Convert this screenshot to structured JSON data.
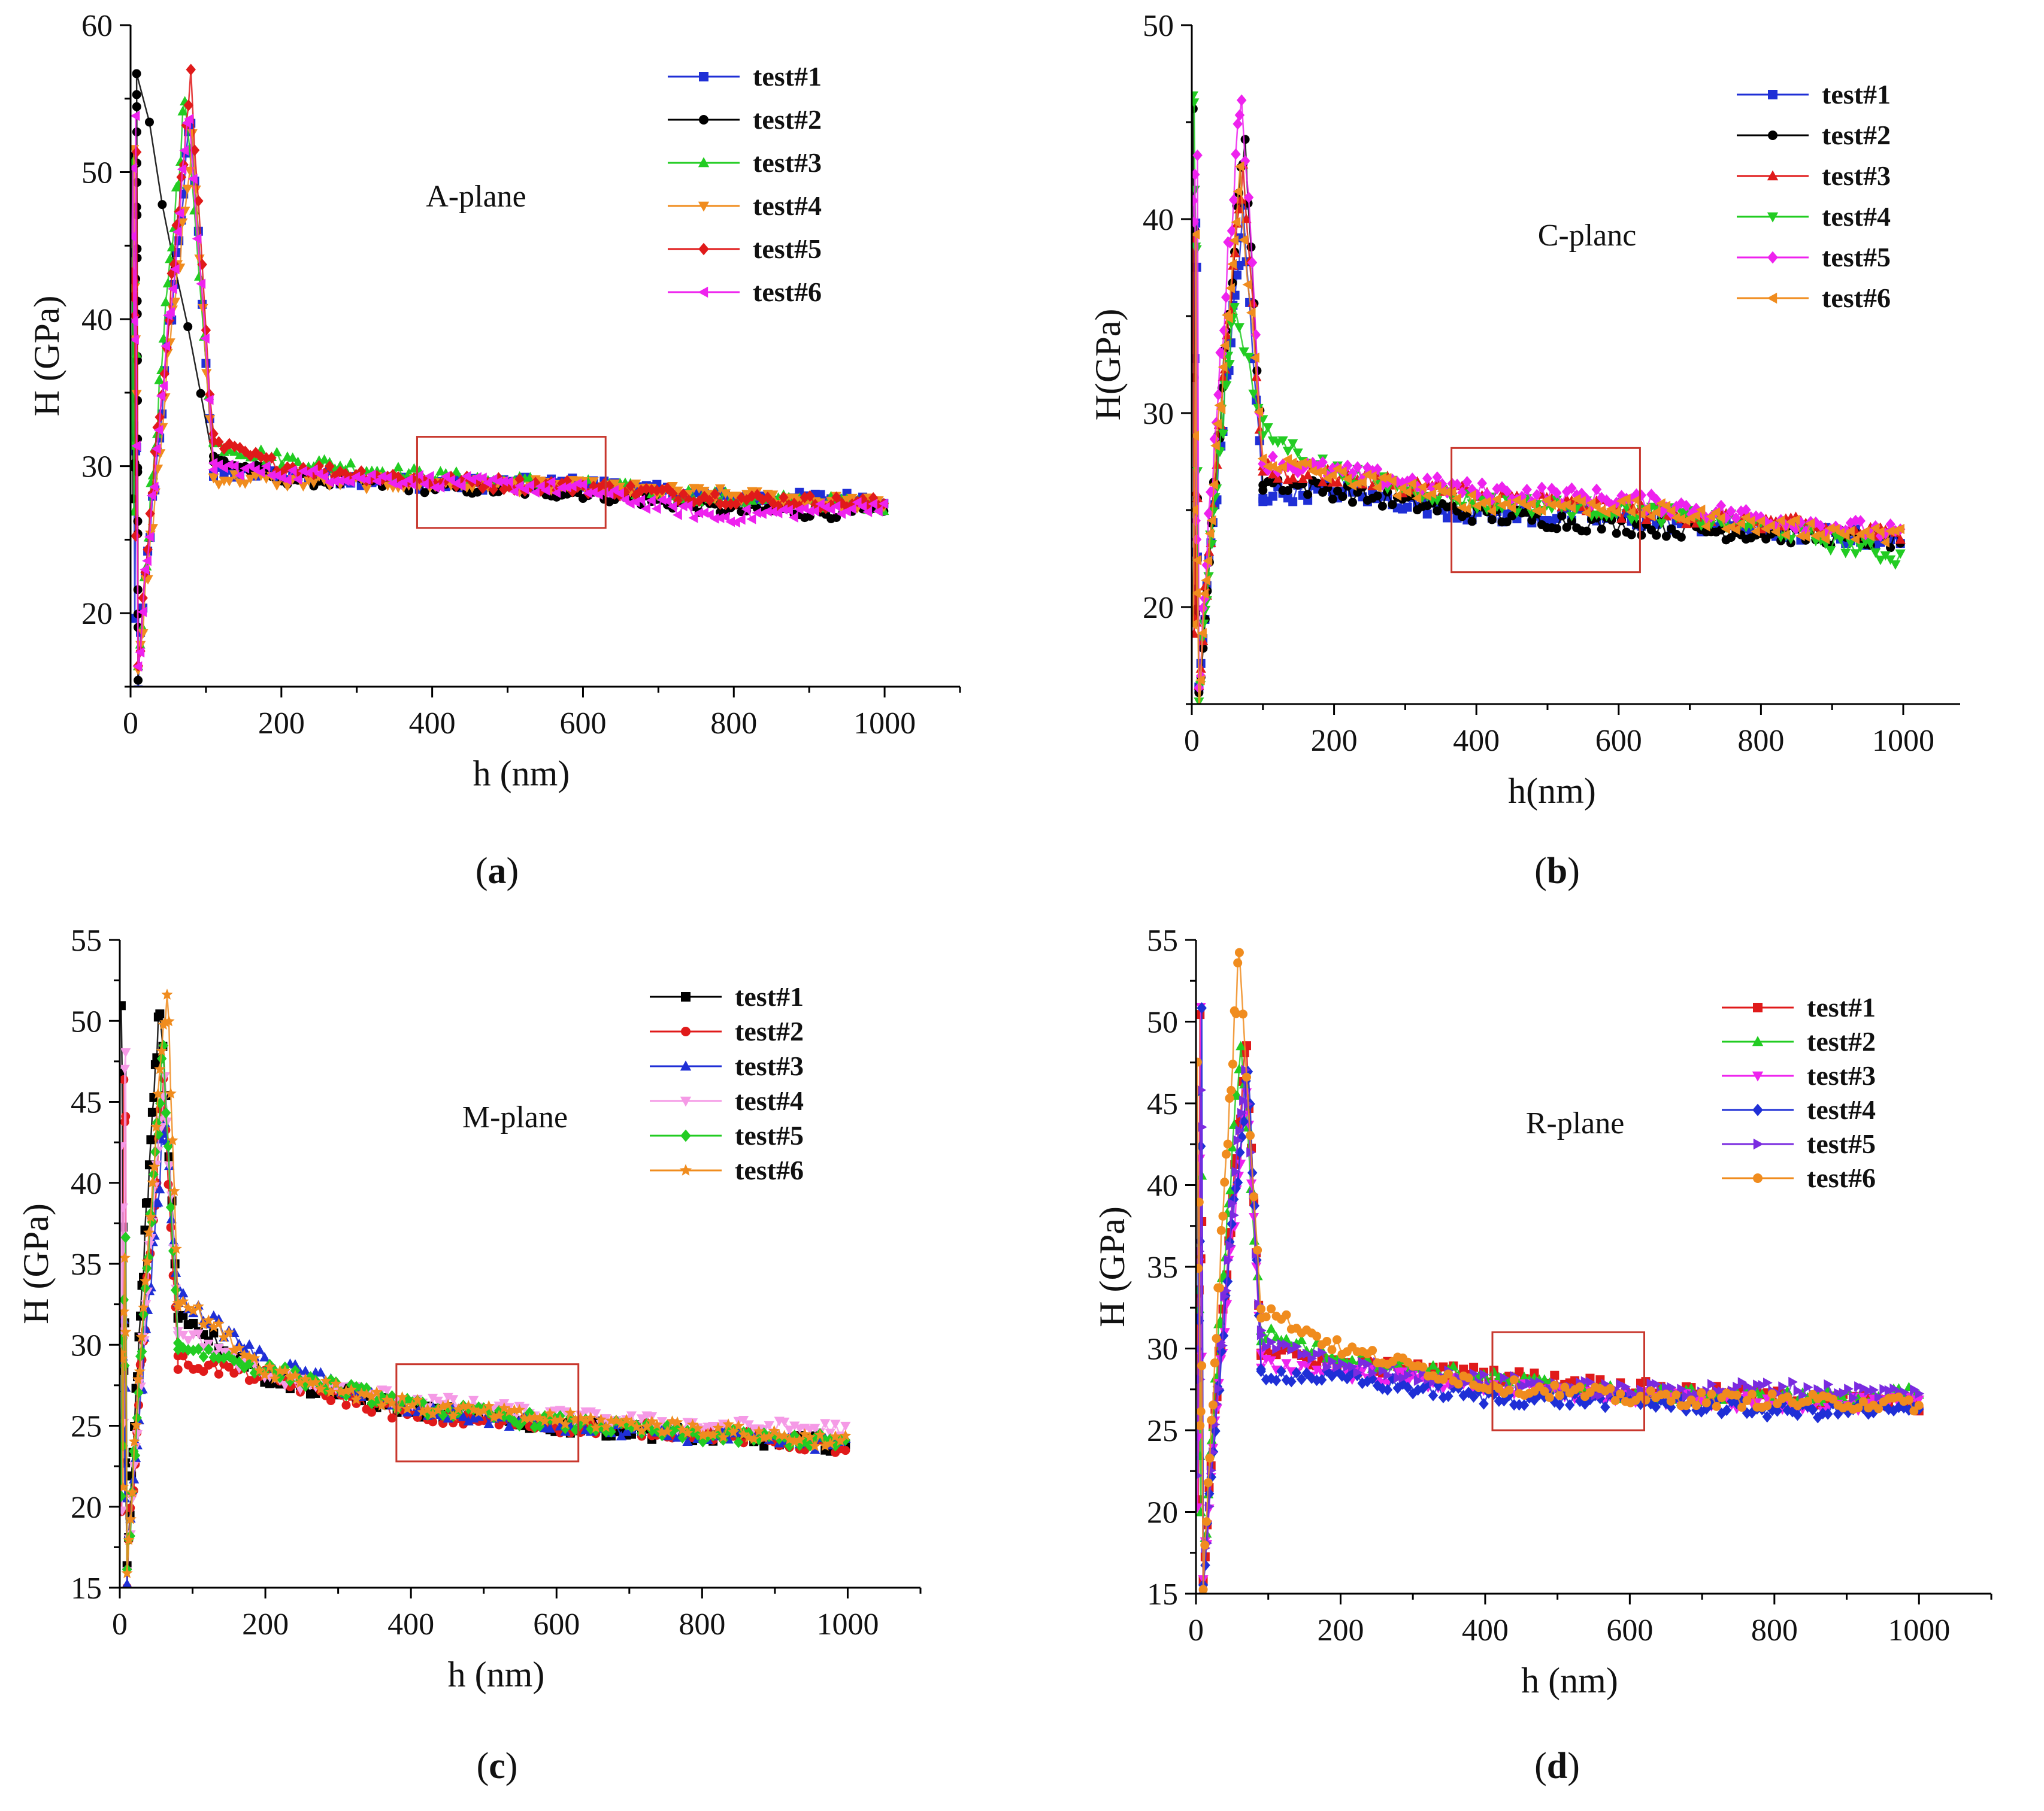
{
  "figure": {
    "panels": [
      {
        "caption_letter": "a",
        "plane_label": "A-plane",
        "box_color": "#c8372d"
      },
      {
        "caption_letter": "b",
        "plane_label": "C-planc",
        "box_color": "#c8372d"
      },
      {
        "caption_letter": "c",
        "plane_label": "M-plane",
        "box_color": "#c8372d"
      },
      {
        "caption_letter": "d",
        "plane_label": "R-plane",
        "box_color": "#c8372d"
      }
    ]
  },
  "chart_data": [
    {
      "type": "scatter",
      "title": "",
      "annotation": "A-plane",
      "xlabel": "h (nm)",
      "ylabel": "H (GPa)",
      "xlim": [
        0,
        1100
      ],
      "ylim": [
        15,
        60
      ],
      "xticks": [
        0,
        200,
        400,
        600,
        800,
        1000
      ],
      "yticks": [
        20,
        30,
        40,
        50,
        60
      ],
      "grid": false,
      "legend_position": "top-right",
      "highlight_box_x": [
        380,
        630
      ],
      "highlight_box_y": [
        25.8,
        32
      ],
      "series": [
        {
          "name": "test#1",
          "color": "#1f2fd6",
          "marker": "square",
          "peak_x": 80,
          "peak_y": 53.5,
          "plateau": [
            [
              110,
              29.5
            ],
            [
              200,
              29.5
            ],
            [
              400,
              28.8
            ],
            [
              600,
              28.8
            ],
            [
              800,
              27.8
            ],
            [
              1000,
              27.8
            ]
          ]
        },
        {
          "name": "test#2",
          "color": "#000000",
          "marker": "circle",
          "peak_x": 8,
          "peak_y": 57.5,
          "plateau": [
            [
              110,
              30.5
            ],
            [
              200,
              29.2
            ],
            [
              400,
              28.6
            ],
            [
              600,
              28.2
            ],
            [
              800,
              27.0
            ],
            [
              1000,
              26.8
            ]
          ]
        },
        {
          "name": "test#3",
          "color": "#22cc22",
          "marker": "triangle-up",
          "peak_x": 72,
          "peak_y": 55.0,
          "plateau": [
            [
              110,
              31.5
            ],
            [
              200,
              30.5
            ],
            [
              400,
              29.3
            ],
            [
              600,
              28.7
            ],
            [
              800,
              27.8
            ],
            [
              1000,
              27.4
            ]
          ]
        },
        {
          "name": "test#4",
          "color": "#f08c1e",
          "marker": "triangle-down",
          "peak_x": 82,
          "peak_y": 52.0,
          "plateau": [
            [
              110,
              29.2
            ],
            [
              200,
              29.0
            ],
            [
              400,
              28.8
            ],
            [
              600,
              28.6
            ],
            [
              800,
              28.0
            ],
            [
              1000,
              27.4
            ]
          ]
        },
        {
          "name": "test#5",
          "color": "#e01a1a",
          "marker": "diamond",
          "peak_x": 80,
          "peak_y": 56.0,
          "plateau": [
            [
              110,
              31.5
            ],
            [
              200,
              30.0
            ],
            [
              400,
              29.0
            ],
            [
              600,
              28.6
            ],
            [
              800,
              27.8
            ],
            [
              1000,
              27.4
            ]
          ]
        },
        {
          "name": "test#6",
          "color": "#ee22ee",
          "marker": "triangle-left",
          "peak_x": 78,
          "peak_y": 54.0,
          "plateau": [
            [
              110,
              30.0
            ],
            [
              200,
              29.5
            ],
            [
              400,
              29.0
            ],
            [
              600,
              28.4
            ],
            [
              780,
              26.5
            ],
            [
              1000,
              27.4
            ]
          ]
        }
      ]
    },
    {
      "type": "scatter",
      "title": "",
      "annotation": "C-planc",
      "xlabel": "h(nm)",
      "ylabel": "H(GPa)",
      "xlim": [
        0,
        1080
      ],
      "ylim": [
        15,
        50
      ],
      "xticks": [
        0,
        200,
        400,
        600,
        800,
        1000
      ],
      "yticks": [
        20,
        30,
        40,
        50
      ],
      "grid": false,
      "legend_position": "top-right",
      "highlight_box_x": [
        365,
        630
      ],
      "highlight_box_y": [
        21.8,
        28.2
      ],
      "series": [
        {
          "name": "test#1",
          "color": "#1f2fd6",
          "marker": "square",
          "peak_x": 72,
          "peak_y": 40.0,
          "plateau": [
            [
              100,
              25.8
            ],
            [
              200,
              26.0
            ],
            [
              400,
              24.8
            ],
            [
              600,
              24.6
            ],
            [
              800,
              24.0
            ],
            [
              1000,
              23.4
            ]
          ]
        },
        {
          "name": "test#2",
          "color": "#000000",
          "marker": "circle",
          "peak_x": 75,
          "peak_y": 44.5,
          "plateau": [
            [
              100,
              26.5
            ],
            [
              200,
              26.0
            ],
            [
              400,
              24.8
            ],
            [
              600,
              24.2
            ],
            [
              800,
              23.8
            ],
            [
              1000,
              23.4
            ]
          ]
        },
        {
          "name": "test#3",
          "color": "#e01a1a",
          "marker": "triangle-up",
          "peak_x": 72,
          "peak_y": 43.0,
          "plateau": [
            [
              100,
              27.0
            ],
            [
              200,
              26.8
            ],
            [
              400,
              25.8
            ],
            [
              600,
              25.0
            ],
            [
              800,
              24.4
            ],
            [
              1000,
              23.6
            ]
          ]
        },
        {
          "name": "test#4",
          "color": "#22cc22",
          "marker": "triangle-down",
          "peak_x": 60,
          "peak_y": 36.0,
          "plateau": [
            [
              100,
              29.0
            ],
            [
              200,
              27.0
            ],
            [
              400,
              25.4
            ],
            [
              600,
              25.0
            ],
            [
              800,
              24.2
            ],
            [
              1000,
              22.5
            ]
          ]
        },
        {
          "name": "test#5",
          "color": "#ee22ee",
          "marker": "diamond",
          "peak_x": 70,
          "peak_y": 47.0,
          "plateau": [
            [
              100,
              27.5
            ],
            [
              200,
              27.0
            ],
            [
              400,
              26.0
            ],
            [
              600,
              25.6
            ],
            [
              800,
              24.6
            ],
            [
              1000,
              23.8
            ]
          ]
        },
        {
          "name": "test#6",
          "color": "#f08c1e",
          "marker": "triangle-left",
          "peak_x": 68,
          "peak_y": 42.0,
          "plateau": [
            [
              100,
              27.6
            ],
            [
              200,
              26.8
            ],
            [
              400,
              25.4
            ],
            [
              600,
              25.2
            ],
            [
              800,
              24.2
            ],
            [
              1000,
              23.6
            ]
          ]
        }
      ]
    },
    {
      "type": "scatter",
      "title": "",
      "annotation": "M-plane",
      "xlabel": "h (nm)",
      "ylabel": "H (GPa)",
      "xlim": [
        0,
        1100
      ],
      "ylim": [
        15,
        55
      ],
      "xticks": [
        0,
        200,
        400,
        600,
        800,
        1000
      ],
      "yticks": [
        15,
        20,
        25,
        30,
        35,
        40,
        45,
        50,
        55
      ],
      "grid": false,
      "legend_position": "top-right",
      "highlight_box_x": [
        380,
        630
      ],
      "highlight_box_y": [
        22.8,
        28.8
      ],
      "series": [
        {
          "name": "test#1",
          "color": "#000000",
          "marker": "square",
          "peak_x": 55,
          "peak_y": 51.5,
          "plateau": [
            [
              80,
              32.0
            ],
            [
              200,
              28.0
            ],
            [
              400,
              26.0
            ],
            [
              600,
              25.0
            ],
            [
              800,
              24.4
            ],
            [
              1000,
              23.8
            ]
          ]
        },
        {
          "name": "test#2",
          "color": "#e01a1a",
          "marker": "circle",
          "peak_x": 60,
          "peak_y": 46.0,
          "plateau": [
            [
              80,
              29.0
            ],
            [
              200,
              28.0
            ],
            [
              400,
              25.6
            ],
            [
              600,
              25.0
            ],
            [
              800,
              24.6
            ],
            [
              1000,
              23.6
            ]
          ]
        },
        {
          "name": "test#3",
          "color": "#1f2fd6",
          "marker": "triangle-up",
          "peak_x": 62,
          "peak_y": 44.0,
          "plateau": [
            [
              80,
              33.0
            ],
            [
              200,
              29.0
            ],
            [
              400,
              26.0
            ],
            [
              600,
              25.0
            ],
            [
              800,
              24.4
            ],
            [
              1000,
              23.8
            ]
          ]
        },
        {
          "name": "test#4",
          "color": "#f59ae6",
          "marker": "triangle-down",
          "peak_x": 62,
          "peak_y": 47.0,
          "plateau": [
            [
              80,
              31.0
            ],
            [
              200,
              28.0
            ],
            [
              400,
              26.6
            ],
            [
              600,
              25.6
            ],
            [
              800,
              25.0
            ],
            [
              1000,
              24.8
            ]
          ]
        },
        {
          "name": "test#5",
          "color": "#22cc22",
          "marker": "diamond",
          "peak_x": 60,
          "peak_y": 48.0,
          "plateau": [
            [
              80,
              30.0
            ],
            [
              200,
              28.5
            ],
            [
              400,
              26.2
            ],
            [
              600,
              25.2
            ],
            [
              800,
              24.4
            ],
            [
              1000,
              24.0
            ]
          ]
        },
        {
          "name": "test#6",
          "color": "#f08c1e",
          "marker": "star",
          "peak_x": 65,
          "peak_y": 52.5,
          "plateau": [
            [
              80,
              33.0
            ],
            [
              200,
              28.5
            ],
            [
              400,
              26.2
            ],
            [
              600,
              25.4
            ],
            [
              800,
              24.8
            ],
            [
              1000,
              24.0
            ]
          ]
        }
      ]
    },
    {
      "type": "scatter",
      "title": "",
      "annotation": "R-plane",
      "xlabel": "h (nm)",
      "ylabel": "H (GPa)",
      "xlim": [
        0,
        1100
      ],
      "ylim": [
        15,
        55
      ],
      "xticks": [
        0,
        200,
        400,
        600,
        800,
        1000
      ],
      "yticks": [
        15,
        20,
        25,
        30,
        35,
        40,
        45,
        50,
        55
      ],
      "grid": false,
      "legend_position": "top-right",
      "highlight_box_x": [
        410,
        620
      ],
      "highlight_box_y": [
        25,
        31
      ],
      "series": [
        {
          "name": "test#1",
          "color": "#e01a1a",
          "marker": "square",
          "peak_x": 70,
          "peak_y": 48.5,
          "plateau": [
            [
              90,
              30.0
            ],
            [
              200,
              29.0
            ],
            [
              400,
              28.4
            ],
            [
              600,
              27.6
            ],
            [
              800,
              27.0
            ],
            [
              1000,
              26.6
            ]
          ]
        },
        {
          "name": "test#2",
          "color": "#22cc22",
          "marker": "triangle-up",
          "peak_x": 62,
          "peak_y": 49.0,
          "plateau": [
            [
              90,
              31.0
            ],
            [
              200,
              29.5
            ],
            [
              400,
              28.2
            ],
            [
              600,
              27.2
            ],
            [
              800,
              27.0
            ],
            [
              1000,
              27.2
            ]
          ]
        },
        {
          "name": "test#3",
          "color": "#ee22ee",
          "marker": "triangle-down",
          "peak_x": 70,
          "peak_y": 46.0,
          "plateau": [
            [
              90,
              29.0
            ],
            [
              200,
              28.6
            ],
            [
              400,
              27.6
            ],
            [
              600,
              27.0
            ],
            [
              800,
              26.6
            ],
            [
              1000,
              26.6
            ]
          ]
        },
        {
          "name": "test#4",
          "color": "#1f2fd6",
          "marker": "diamond",
          "peak_x": 72,
          "peak_y": 47.5,
          "plateau": [
            [
              90,
              28.5
            ],
            [
              200,
              28.2
            ],
            [
              400,
              27.0
            ],
            [
              600,
              26.8
            ],
            [
              800,
              26.2
            ],
            [
              1000,
              26.2
            ]
          ]
        },
        {
          "name": "test#5",
          "color": "#7a2be0",
          "marker": "triangle-right",
          "peak_x": 68,
          "peak_y": 47.0,
          "plateau": [
            [
              90,
              30.5
            ],
            [
              200,
              29.0
            ],
            [
              400,
              28.0
            ],
            [
              600,
              27.4
            ],
            [
              800,
              27.6
            ],
            [
              1000,
              27.2
            ]
          ]
        },
        {
          "name": "test#6",
          "color": "#f08c1e",
          "marker": "circle",
          "peak_x": 60,
          "peak_y": 54.5,
          "plateau": [
            [
              90,
              32.5
            ],
            [
              200,
              30.0
            ],
            [
              400,
              27.8
            ],
            [
              600,
              27.0
            ],
            [
              800,
              26.8
            ],
            [
              1000,
              26.6
            ]
          ]
        }
      ]
    }
  ]
}
